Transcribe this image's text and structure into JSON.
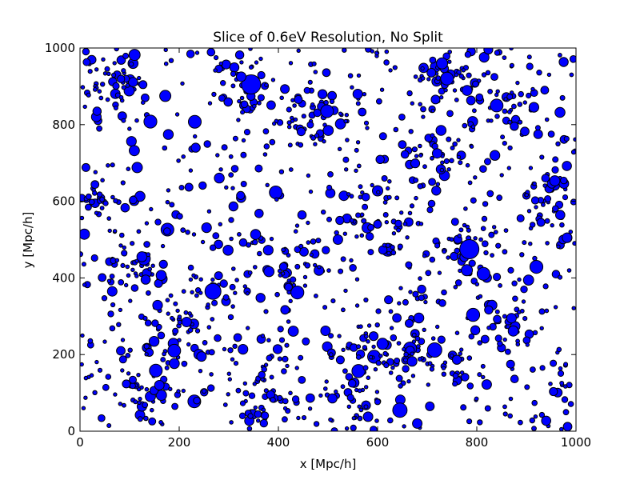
{
  "chart_data": {
    "type": "scatter",
    "title": "Slice of 0.6eV Resolution, No Split",
    "xlabel": "x [Mpc/h]",
    "ylabel": "y [Mpc/h]",
    "xlim": [
      0,
      1000
    ],
    "ylim": [
      0,
      1000
    ],
    "xticks": [
      "0",
      "200",
      "400",
      "600",
      "800",
      "1000"
    ],
    "yticks": [
      "0",
      "200",
      "400",
      "600",
      "800",
      "1000"
    ],
    "grid": false,
    "legend": "none",
    "marker_color": "#0000ff",
    "marker_edge": "#000000",
    "generated_points": 1400,
    "points": [
      {
        "x": 345,
        "y": 905,
        "s": 12
      },
      {
        "x": 785,
        "y": 475,
        "s": 12
      },
      {
        "x": 645,
        "y": 55,
        "s": 9
      },
      {
        "x": 268,
        "y": 365,
        "s": 10
      },
      {
        "x": 715,
        "y": 212,
        "s": 9
      },
      {
        "x": 840,
        "y": 850,
        "s": 8
      },
      {
        "x": 498,
        "y": 835,
        "s": 8
      },
      {
        "x": 190,
        "y": 210,
        "s": 8
      },
      {
        "x": 110,
        "y": 982,
        "s": 7
      },
      {
        "x": 172,
        "y": 875,
        "s": 7
      },
      {
        "x": 740,
        "y": 920,
        "s": 8
      },
      {
        "x": 730,
        "y": 960,
        "s": 7
      },
      {
        "x": 780,
        "y": 420,
        "s": 7
      },
      {
        "x": 610,
        "y": 228,
        "s": 7
      },
      {
        "x": 820,
        "y": 122,
        "s": 6
      },
      {
        "x": 870,
        "y": 295,
        "s": 6
      },
      {
        "x": 982,
        "y": 505,
        "s": 6
      },
      {
        "x": 720,
        "y": 725,
        "s": 6
      },
      {
        "x": 325,
        "y": 925,
        "s": 6
      },
      {
        "x": 160,
        "y": 120,
        "s": 6
      },
      {
        "x": 245,
        "y": 195,
        "s": 6
      },
      {
        "x": 65,
        "y": 365,
        "s": 6
      },
      {
        "x": 215,
        "y": 285,
        "s": 6
      },
      {
        "x": 495,
        "y": 262,
        "s": 6
      },
      {
        "x": 520,
        "y": 500,
        "s": 6
      },
      {
        "x": 560,
        "y": 880,
        "s": 6
      },
      {
        "x": 12,
        "y": 688,
        "s": 5
      },
      {
        "x": 680,
        "y": 20,
        "s": 6
      },
      {
        "x": 868,
        "y": 175,
        "s": 5
      },
      {
        "x": 600,
        "y": 540,
        "s": 5
      }
    ],
    "clusters": [
      {
        "x": 345,
        "y": 905,
        "spread": 60
      },
      {
        "x": 785,
        "y": 475,
        "spread": 55
      },
      {
        "x": 740,
        "y": 930,
        "spread": 55
      },
      {
        "x": 268,
        "y": 365,
        "spread": 60
      },
      {
        "x": 200,
        "y": 250,
        "spread": 70
      },
      {
        "x": 120,
        "y": 420,
        "spread": 60
      },
      {
        "x": 480,
        "y": 820,
        "spread": 60
      },
      {
        "x": 860,
        "y": 840,
        "spread": 60
      },
      {
        "x": 600,
        "y": 230,
        "spread": 60
      },
      {
        "x": 700,
        "y": 200,
        "spread": 60
      },
      {
        "x": 850,
        "y": 280,
        "spread": 55
      },
      {
        "x": 590,
        "y": 520,
        "spread": 70
      },
      {
        "x": 420,
        "y": 430,
        "spread": 60
      },
      {
        "x": 60,
        "y": 900,
        "spread": 55
      },
      {
        "x": 30,
        "y": 600,
        "spread": 40
      },
      {
        "x": 150,
        "y": 100,
        "spread": 60
      },
      {
        "x": 380,
        "y": 60,
        "spread": 70
      },
      {
        "x": 560,
        "y": 60,
        "spread": 60
      },
      {
        "x": 940,
        "y": 620,
        "spread": 50
      },
      {
        "x": 720,
        "y": 720,
        "spread": 60
      }
    ]
  }
}
